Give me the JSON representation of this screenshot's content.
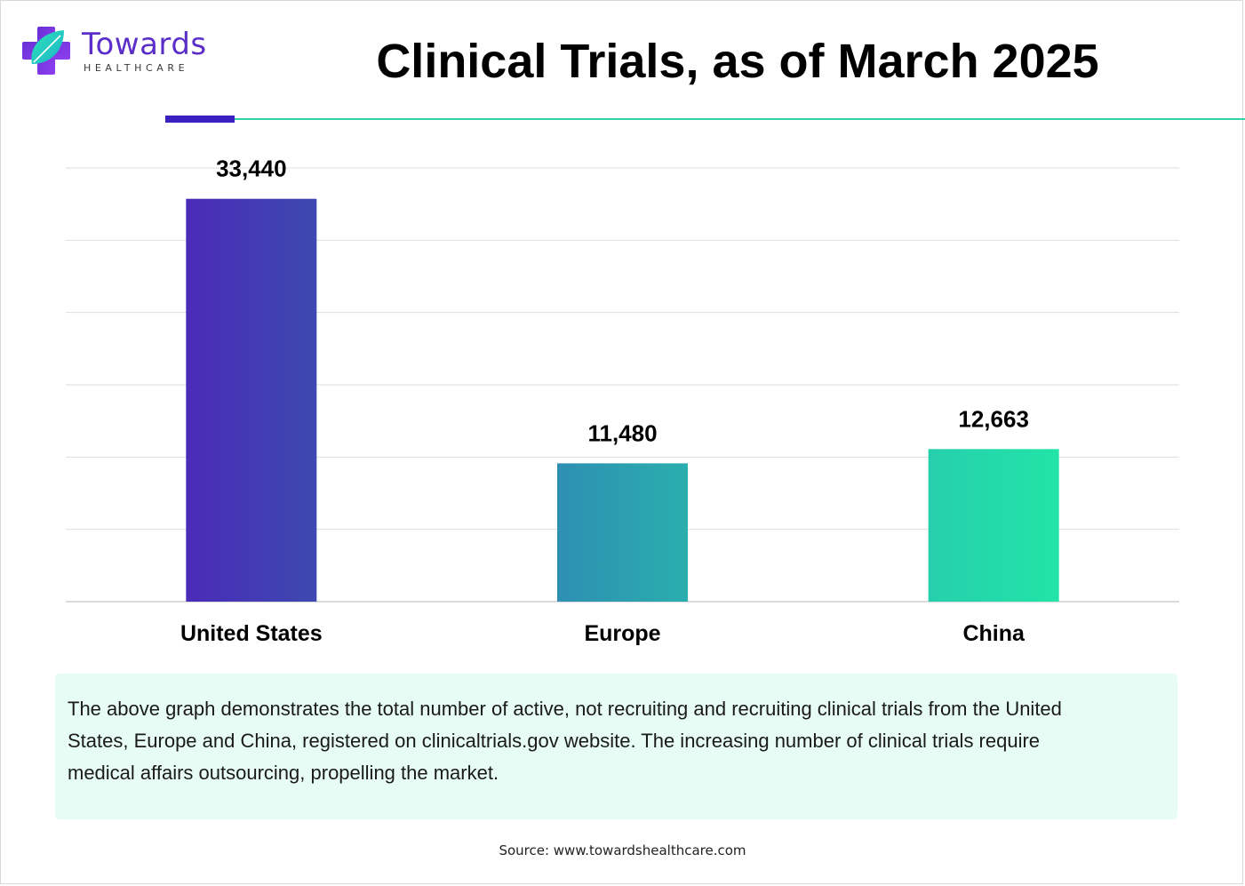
{
  "brand": {
    "name": "Towards",
    "tagline": "HEALTHCARE"
  },
  "colors": {
    "bar_start": "#4a2bb8",
    "bar_mid": "#2aa6b0",
    "bar_end": "#22e2a8",
    "rule_purple": "#3a1fc1",
    "rule_teal": "#2fd3a4"
  },
  "chart_data": {
    "type": "bar",
    "title": "Clinical Trials, as of March 2025",
    "categories": [
      "United States",
      "Europe",
      "China"
    ],
    "values": [
      33440,
      11480,
      12663
    ],
    "value_labels": [
      "33,440",
      "11,480",
      "12,663"
    ],
    "ylim": [
      0,
      36000
    ],
    "grid": true,
    "y_tick_labels_shown": false,
    "legend": "none"
  },
  "note": "The above graph demonstrates the total number of active, not recruiting and recruiting clinical trials from the United States, Europe and China, registered on clinicaltrials.gov website. The increasing number of clinical trials require medical affairs outsourcing, propelling the market.",
  "source": "Source: www.towardshealthcare.com"
}
